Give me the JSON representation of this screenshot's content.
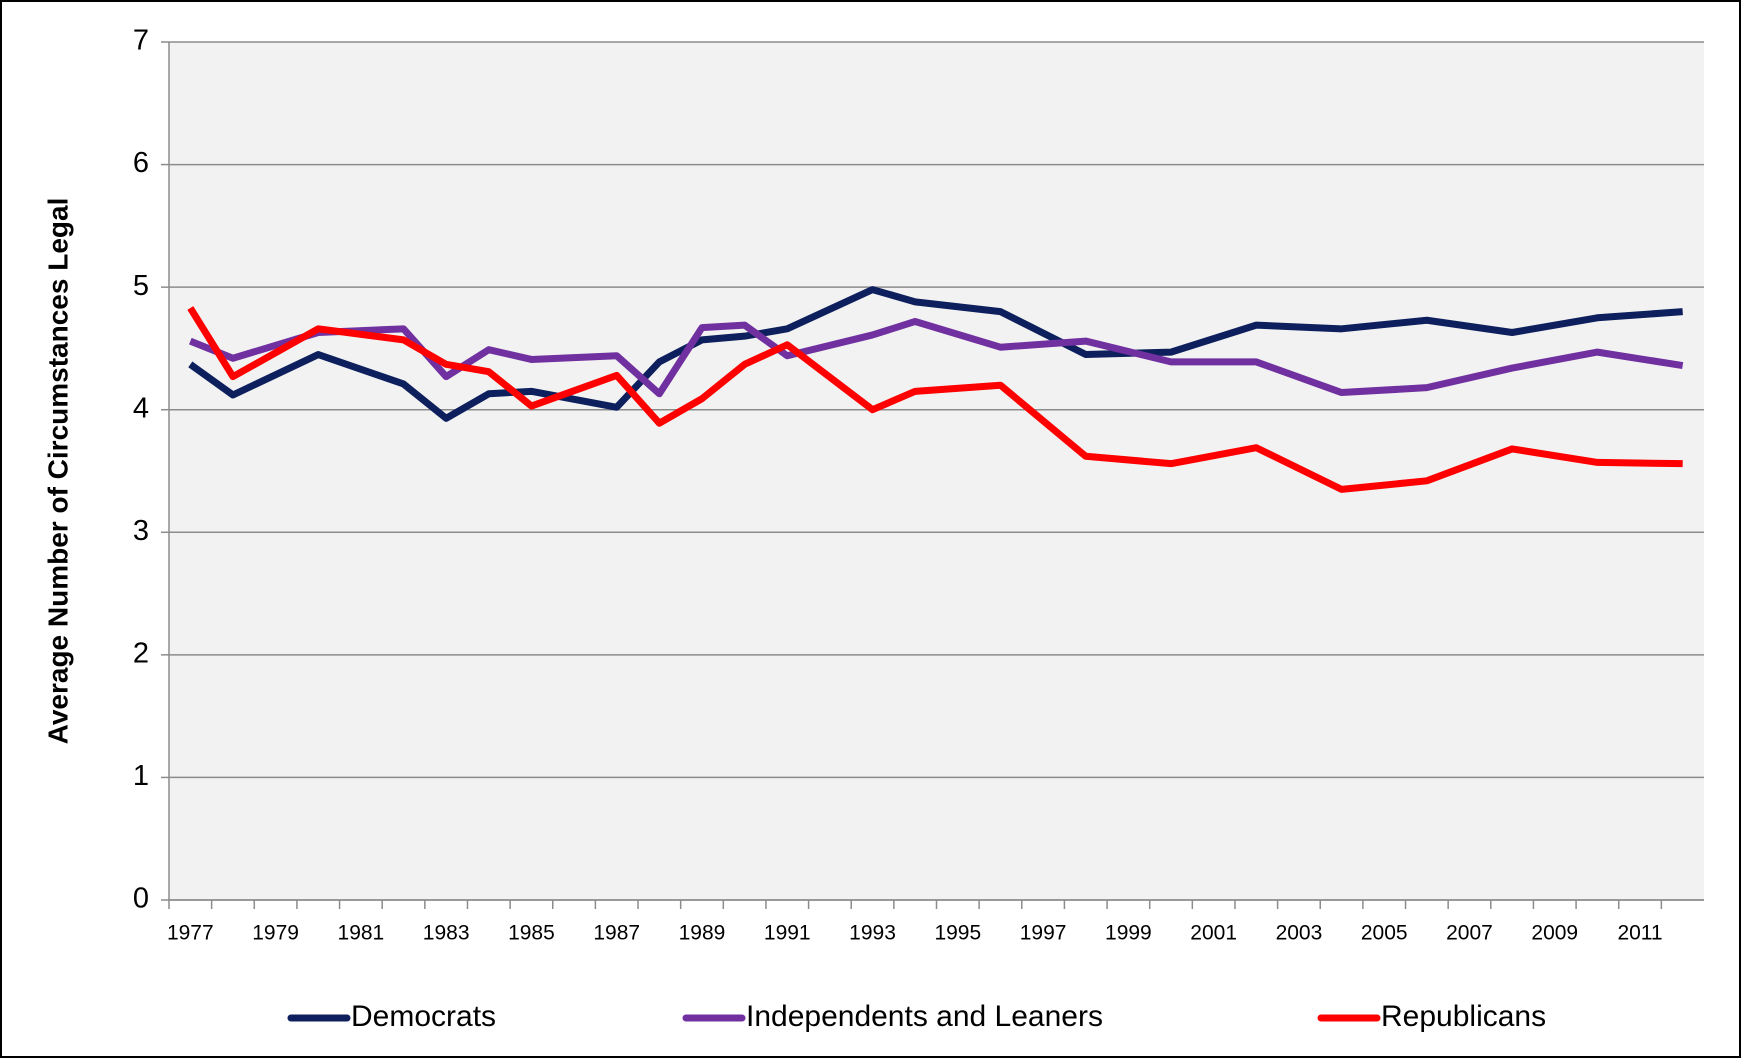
{
  "chart_data": {
    "type": "line",
    "y_label": "Average Number of Circumstances Legal",
    "x": [
      1977,
      1978,
      1980,
      1982,
      1983,
      1984,
      1985,
      1987,
      1988,
      1989,
      1990,
      1991,
      1993,
      1994,
      1996,
      1998,
      2000,
      2002,
      2004,
      2006,
      2008,
      2010,
      2012
    ],
    "series": [
      {
        "name": "Democrats",
        "color": "#0d1f5c",
        "values": [
          4.37,
          4.12,
          4.45,
          4.21,
          3.93,
          4.13,
          4.15,
          4.02,
          4.39,
          4.57,
          4.6,
          4.66,
          4.98,
          4.88,
          4.8,
          4.45,
          4.47,
          4.69,
          4.66,
          4.73,
          4.63,
          4.75,
          4.8
        ]
      },
      {
        "name": "Independents and Leaners",
        "color": "#7030a0",
        "values": [
          4.56,
          4.42,
          4.63,
          4.66,
          4.27,
          4.49,
          4.41,
          4.44,
          4.13,
          4.67,
          4.69,
          4.44,
          4.61,
          4.72,
          4.51,
          4.56,
          4.39,
          4.39,
          4.14,
          4.18,
          4.34,
          4.47,
          4.36
        ]
      },
      {
        "name": "Republicans",
        "color": "#ff0000",
        "values": [
          4.83,
          4.27,
          4.66,
          4.57,
          4.37,
          4.31,
          4.03,
          4.28,
          3.89,
          4.09,
          4.37,
          4.53,
          4.0,
          4.15,
          4.2,
          3.62,
          3.56,
          3.69,
          3.35,
          3.42,
          3.68,
          3.57,
          3.56
        ]
      }
    ],
    "xlim": [
      1976.5,
      2012.5
    ],
    "xticks": [
      1977,
      1979,
      1981,
      1983,
      1985,
      1987,
      1989,
      1991,
      1993,
      1995,
      1997,
      1999,
      2001,
      2003,
      2005,
      2007,
      2009,
      2011
    ],
    "ylim": [
      0,
      7
    ],
    "yticks": [
      0,
      1,
      2,
      3,
      4,
      5,
      6,
      7
    ],
    "grid": true,
    "legend": "bottom"
  }
}
